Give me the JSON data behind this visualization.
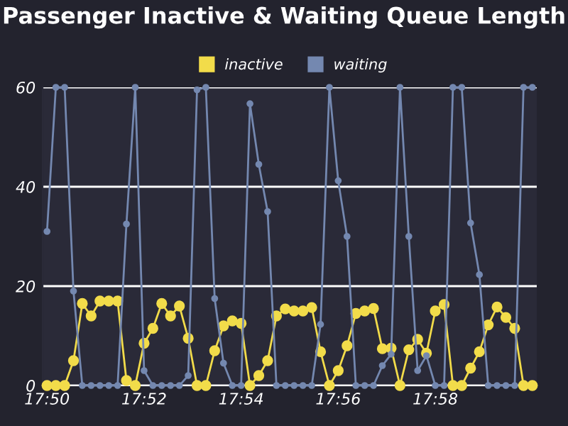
{
  "chart_data": {
    "type": "line",
    "title": "Passenger Inactive & Waiting Queue Length",
    "categories": [
      "17:50",
      null,
      null,
      null,
      null,
      null,
      null,
      null,
      null,
      null,
      null,
      "17:52",
      null,
      null,
      null,
      null,
      null,
      null,
      null,
      null,
      null,
      null,
      "17:54",
      null,
      null,
      null,
      null,
      null,
      null,
      null,
      null,
      null,
      null,
      "17:56",
      null,
      null,
      null,
      null,
      null,
      null,
      null,
      null,
      null,
      null,
      "17:58",
      null,
      null,
      null,
      null,
      null,
      null,
      null,
      null,
      null,
      null,
      null
    ],
    "series": [
      {
        "name": "inactive",
        "color": "#f2dc4a",
        "values": [
          0,
          0,
          0,
          5,
          16.5,
          14,
          17,
          17,
          17,
          1,
          0,
          8.5,
          11.5,
          16.5,
          14,
          16,
          9.5,
          0,
          0,
          7,
          12,
          13,
          12.5,
          0,
          2,
          5,
          14,
          15.4,
          15,
          15,
          15.7,
          6.8,
          0,
          3,
          8,
          14.5,
          15,
          15.5,
          7.4,
          7.5,
          0,
          7.2,
          9.3,
          6.5,
          15,
          16.3,
          0,
          0,
          3.5,
          6.8,
          12.2,
          15.8,
          13.7,
          11.5,
          0,
          0
        ]
      },
      {
        "name": "waiting",
        "color": "#7488b0",
        "values": [
          31,
          60,
          60,
          19,
          0,
          0,
          0,
          0,
          0,
          32.5,
          60,
          3,
          0,
          0,
          0,
          0,
          2,
          59.5,
          60,
          17.5,
          4.5,
          0,
          0,
          56.7,
          44.5,
          35,
          0,
          0,
          0,
          0,
          0,
          12.3,
          60,
          41.2,
          30,
          0,
          0,
          0,
          4,
          6.3,
          60,
          30,
          3,
          6,
          0,
          0,
          60,
          60,
          32.7,
          22.3,
          0,
          0,
          0,
          0,
          60,
          60
        ]
      }
    ],
    "ylim": [
      0,
      60
    ],
    "yticks": [
      0,
      20,
      40,
      60
    ],
    "grid": "y",
    "legend": "top",
    "marker": "circle",
    "line_style": "solid"
  }
}
